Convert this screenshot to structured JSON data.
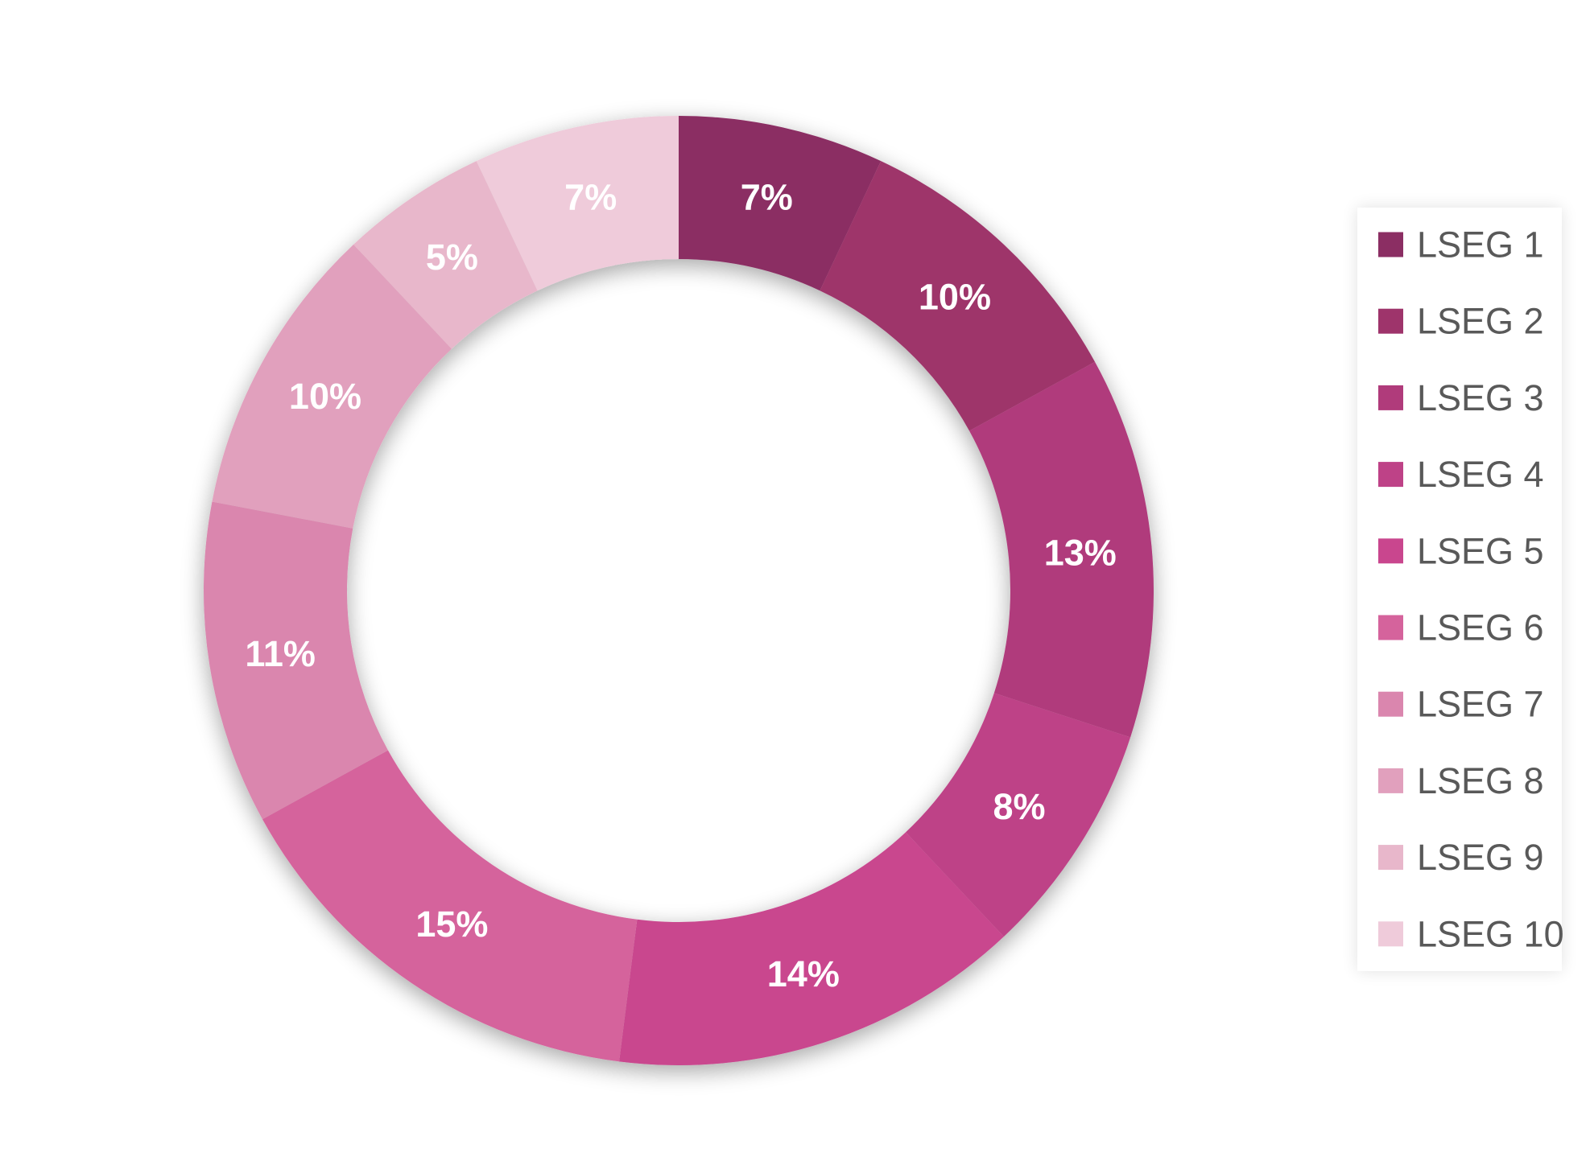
{
  "chart_data": {
    "type": "pie",
    "style": "donut",
    "categories": [
      "LSEG 1",
      "LSEG 2",
      "LSEG 3",
      "LSEG 4",
      "LSEG 5",
      "LSEG 6",
      "LSEG 7",
      "LSEG 8",
      "LSEG 9",
      "LSEG 10"
    ],
    "values": [
      7,
      10,
      13,
      8,
      14,
      15,
      11,
      10,
      5,
      7
    ],
    "labels": [
      "7%",
      "10%",
      "13%",
      "8%",
      "14%",
      "15%",
      "11%",
      "10%",
      "5%",
      "7%"
    ],
    "colors": [
      "#8b2e63",
      "#9e346b",
      "#b03b7b",
      "#be4287",
      "#c9468e",
      "#d5639c",
      "#da86ae",
      "#e1a0bd",
      "#e8b7cb",
      "#efcbda"
    ],
    "legend_position": "right",
    "title": "",
    "label_color": "#ffffff"
  }
}
